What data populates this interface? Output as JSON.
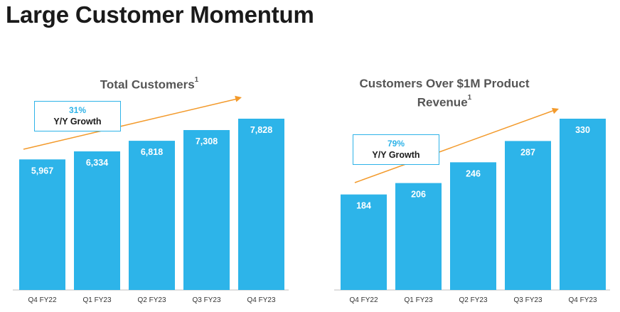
{
  "page": {
    "title": "Large Customer Momentum"
  },
  "colors": {
    "bar": "#2db4e9",
    "trend": "#f39a2b",
    "accent": "#2eb3e8",
    "axis": "#bfbfbf"
  },
  "chart_data": [
    {
      "type": "bar",
      "title": "Total Customers",
      "footnote": "1",
      "categories": [
        "Q4 FY22",
        "Q1 FY23",
        "Q2 FY23",
        "Q3 FY23",
        "Q4 FY23"
      ],
      "values": [
        5967,
        6334,
        6818,
        7308,
        7828
      ],
      "value_labels": [
        "5,967",
        "6,334",
        "6,818",
        "7,308",
        "7,828"
      ],
      "growth": {
        "value": "31%",
        "label": "Y/Y Growth"
      },
      "xlabel": "",
      "ylabel": "",
      "grid": false
    },
    {
      "type": "bar",
      "title": "Customers Over $1M Product Revenue",
      "title_lines": [
        "Customers Over $1M Product",
        "Revenue"
      ],
      "footnote": "1",
      "categories": [
        "Q4 FY22",
        "Q1 FY23",
        "Q2 FY23",
        "Q3 FY23",
        "Q4 FY23"
      ],
      "values": [
        184,
        206,
        246,
        287,
        330
      ],
      "value_labels": [
        "184",
        "206",
        "246",
        "287",
        "330"
      ],
      "growth": {
        "value": "79%",
        "label": "Y/Y Growth"
      },
      "xlabel": "",
      "ylabel": "",
      "grid": false
    }
  ]
}
